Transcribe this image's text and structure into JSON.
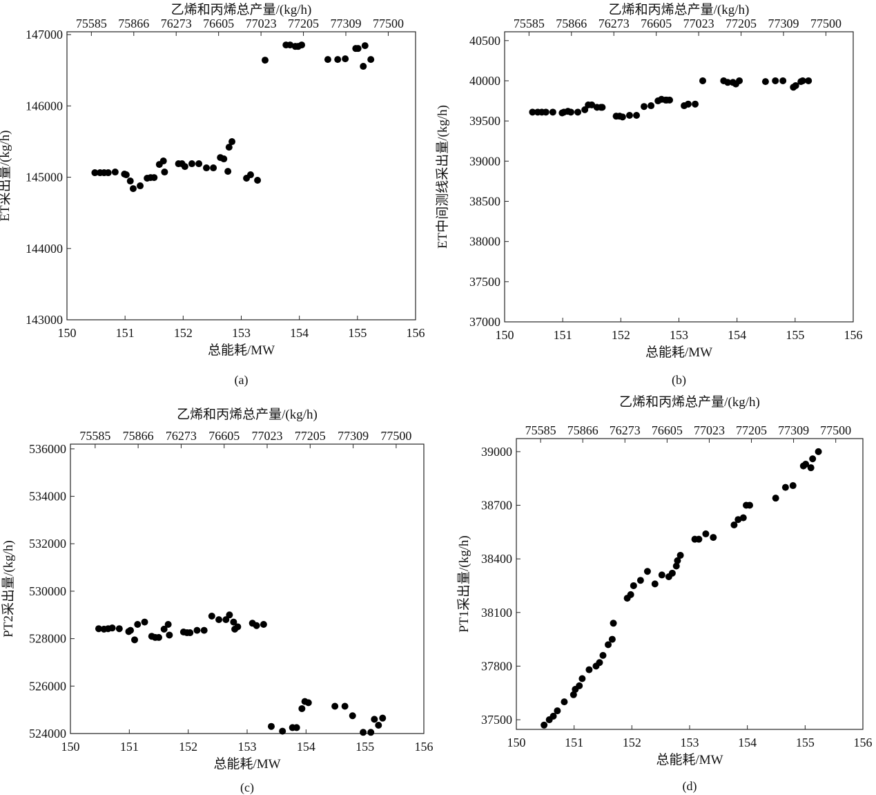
{
  "chart_data": [
    {
      "type": "scatter",
      "caption": "(a)",
      "title": "乙烯和丙烯总产量/(kg/h)",
      "xlabel": "总能耗/MW",
      "ylabel": "ET采出量/(kg/h)",
      "xlim": [
        150,
        156
      ],
      "ylim": [
        143000,
        147040
      ],
      "xticks": [
        150,
        151,
        152,
        153,
        154,
        155,
        156
      ],
      "yticks": [
        143000,
        144000,
        145000,
        146000,
        147000
      ],
      "top_ticks": [
        75585,
        75866,
        76273,
        76605,
        77023,
        77205,
        77309,
        77500
      ],
      "x": [
        150.48,
        150.57,
        150.64,
        150.71,
        150.83,
        150.99,
        151.02,
        151.09,
        151.14,
        151.26,
        151.38,
        151.44,
        151.5,
        151.59,
        151.66,
        151.68,
        151.92,
        151.98,
        152.03,
        152.15,
        152.27,
        152.4,
        152.52,
        152.64,
        152.7,
        152.77,
        152.79,
        152.84,
        153.09,
        153.16,
        153.28,
        153.41,
        153.77,
        153.84,
        153.93,
        153.98,
        154.04,
        154.49,
        154.66,
        154.79,
        154.97,
        155.01,
        155.1,
        155.13,
        155.23
      ],
      "y": [
        145063,
        145063,
        145063,
        145063,
        145073,
        145044,
        145034,
        144947,
        144840,
        144879,
        144986,
        144995,
        144995,
        145179,
        145228,
        145073,
        145189,
        145189,
        145150,
        145189,
        145189,
        145131,
        145131,
        145276,
        145257,
        145082,
        145421,
        145499,
        144986,
        145034,
        144957,
        146642,
        146855,
        146855,
        146835,
        146835,
        146855,
        146651,
        146651,
        146661,
        146806,
        146806,
        146555,
        146845,
        146651
      ]
    },
    {
      "type": "scatter",
      "caption": "(b)",
      "title": "乙烯和丙烯总产量/(kg/h)",
      "xlabel": "总能耗/MW",
      "ylabel": "ET中间测线采出量/(kg/h)",
      "xlim": [
        150,
        156
      ],
      "ylim": [
        37000,
        40610
      ],
      "xticks": [
        150,
        151,
        152,
        153,
        154,
        155,
        156
      ],
      "yticks": [
        37000,
        37500,
        38000,
        38500,
        39000,
        39500,
        40000,
        40500
      ],
      "top_ticks": [
        75585,
        75866,
        76273,
        76605,
        77023,
        77205,
        77309,
        77500
      ],
      "x": [
        150.48,
        150.57,
        150.64,
        150.71,
        150.83,
        150.99,
        151.02,
        151.09,
        151.14,
        151.26,
        151.38,
        151.44,
        151.5,
        151.59,
        151.66,
        151.68,
        151.92,
        151.98,
        152.03,
        152.15,
        152.27,
        152.4,
        152.52,
        152.64,
        152.7,
        152.77,
        152.79,
        152.84,
        153.09,
        153.16,
        153.28,
        153.41,
        153.77,
        153.84,
        153.93,
        153.98,
        154.04,
        154.49,
        154.66,
        154.79,
        154.97,
        155.01,
        155.1,
        155.13,
        155.23
      ],
      "y": [
        39610,
        39610,
        39610,
        39610,
        39610,
        39600,
        39610,
        39620,
        39610,
        39610,
        39640,
        39700,
        39700,
        39670,
        39670,
        39670,
        39560,
        39560,
        39550,
        39570,
        39570,
        39680,
        39690,
        39750,
        39770,
        39760,
        39760,
        39760,
        39690,
        39710,
        39710,
        40000,
        40000,
        39980,
        39980,
        39960,
        40000,
        39990,
        40000,
        40000,
        39920,
        39940,
        39990,
        40000,
        40000
      ]
    },
    {
      "type": "scatter",
      "caption": "(c)",
      "title": "乙烯和丙烯总产量/(kg/h)",
      "xlabel": "总能耗/MW",
      "ylabel": "PT2采出量/(kg/h)",
      "xlim": [
        150,
        156
      ],
      "ylim": [
        524000,
        536200
      ],
      "xticks": [
        150,
        151,
        152,
        153,
        154,
        155,
        156
      ],
      "yticks": [
        524000,
        526000,
        528000,
        530000,
        532000,
        534000,
        536000
      ],
      "top_ticks": [
        75585,
        75866,
        76273,
        76605,
        77023,
        77205,
        77309,
        77500
      ],
      "x": [
        150.48,
        150.57,
        150.64,
        150.71,
        150.83,
        150.99,
        151.02,
        151.09,
        151.14,
        151.26,
        151.38,
        151.44,
        151.5,
        151.59,
        151.66,
        151.68,
        151.92,
        151.98,
        152.03,
        152.15,
        152.27,
        152.4,
        152.52,
        152.64,
        152.7,
        152.77,
        152.79,
        152.84,
        153.09,
        153.16,
        153.28,
        153.41,
        153.6,
        153.77,
        153.84,
        153.93,
        153.98,
        154.04,
        154.49,
        154.66,
        154.79,
        154.97,
        155.1,
        155.16,
        155.23,
        155.3
      ],
      "y": [
        528420,
        528400,
        528420,
        528450,
        528420,
        528300,
        528350,
        527950,
        528600,
        528700,
        528100,
        528050,
        528050,
        528400,
        528600,
        528150,
        528280,
        528250,
        528250,
        528350,
        528350,
        528950,
        528800,
        528800,
        529000,
        528700,
        528400,
        528500,
        528650,
        528550,
        528600,
        524300,
        524100,
        524250,
        524250,
        525050,
        525350,
        525300,
        525150,
        525150,
        524750,
        524050,
        524050,
        524600,
        524350,
        524650
      ]
    },
    {
      "type": "scatter",
      "caption": "(d)",
      "title": "乙烯和丙烯总产量/(kg/h)",
      "xlabel": "总能耗/MW",
      "ylabel": "PT1采出量/(kg/h)",
      "xlim": [
        150,
        156
      ],
      "ylim": [
        37446,
        39073
      ],
      "xticks": [
        150,
        151,
        152,
        153,
        154,
        155,
        156
      ],
      "yticks": [
        37500,
        37800,
        38100,
        38400,
        38700,
        39000
      ],
      "top_ticks": [
        75585,
        75866,
        76273,
        76605,
        77023,
        77205,
        77309,
        77500
      ],
      "x": [
        150.48,
        150.57,
        150.64,
        150.71,
        150.83,
        150.99,
        151.02,
        151.09,
        151.14,
        151.26,
        151.38,
        151.44,
        151.5,
        151.59,
        151.66,
        151.68,
        151.92,
        151.98,
        152.03,
        152.15,
        152.27,
        152.4,
        152.52,
        152.64,
        152.7,
        152.77,
        152.79,
        152.84,
        153.09,
        153.16,
        153.28,
        153.41,
        153.77,
        153.84,
        153.93,
        153.98,
        154.04,
        154.49,
        154.66,
        154.79,
        154.97,
        155.01,
        155.1,
        155.13,
        155.23
      ],
      "y": [
        37470,
        37500,
        37520,
        37550,
        37600,
        37640,
        37670,
        37690,
        37730,
        37780,
        37800,
        37820,
        37860,
        37920,
        37950,
        38040,
        38180,
        38200,
        38250,
        38280,
        38330,
        38260,
        38310,
        38300,
        38320,
        38360,
        38390,
        38420,
        38510,
        38510,
        38540,
        38520,
        38590,
        38620,
        38630,
        38700,
        38700,
        38740,
        38800,
        38810,
        38920,
        38930,
        38910,
        38960,
        39000
      ]
    }
  ]
}
